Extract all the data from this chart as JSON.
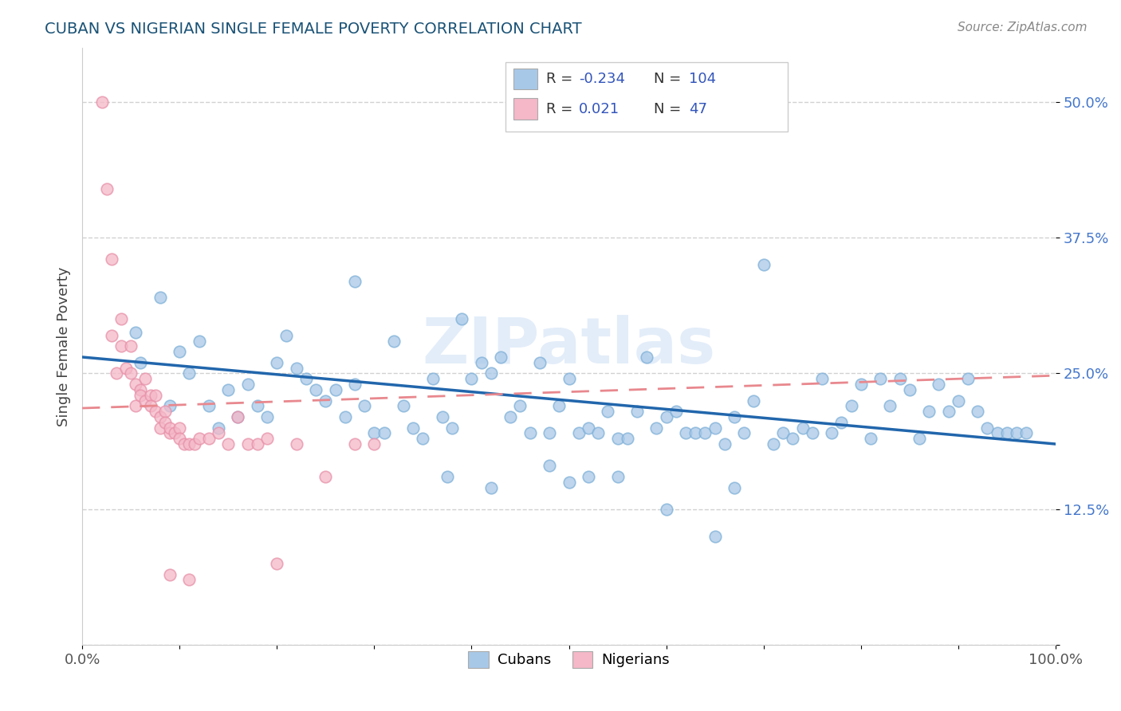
{
  "title": "CUBAN VS NIGERIAN SINGLE FEMALE POVERTY CORRELATION CHART",
  "source": "Source: ZipAtlas.com",
  "ylabel": "Single Female Poverty",
  "title_color": "#1a5276",
  "source_color": "#888888",
  "background_color": "#ffffff",
  "xlim": [
    0.0,
    1.0
  ],
  "ylim": [
    0.0,
    0.55
  ],
  "yticks": [
    0.0,
    0.125,
    0.25,
    0.375,
    0.5
  ],
  "ytick_labels": [
    "",
    "12.5%",
    "25.0%",
    "37.5%",
    "50.0%"
  ],
  "legend_labels": [
    "Cubans",
    "Nigerians"
  ],
  "cubans_color": "#a8c8e8",
  "nigerians_color": "#f4b8c8",
  "cubans_edge_color": "#7eb0d8",
  "nigerians_edge_color": "#e890a8",
  "cubans_line_color": "#2166ac",
  "nigerians_line_color": "#e8888e",
  "legend_text_color": "#3355bb",
  "cubans_scatter": [
    [
      0.055,
      0.288
    ],
    [
      0.06,
      0.26
    ],
    [
      0.08,
      0.32
    ],
    [
      0.09,
      0.22
    ],
    [
      0.1,
      0.27
    ],
    [
      0.11,
      0.25
    ],
    [
      0.12,
      0.28
    ],
    [
      0.13,
      0.22
    ],
    [
      0.14,
      0.2
    ],
    [
      0.15,
      0.235
    ],
    [
      0.16,
      0.21
    ],
    [
      0.17,
      0.24
    ],
    [
      0.18,
      0.22
    ],
    [
      0.19,
      0.21
    ],
    [
      0.2,
      0.26
    ],
    [
      0.21,
      0.285
    ],
    [
      0.22,
      0.255
    ],
    [
      0.23,
      0.245
    ],
    [
      0.24,
      0.235
    ],
    [
      0.25,
      0.225
    ],
    [
      0.26,
      0.235
    ],
    [
      0.27,
      0.21
    ],
    [
      0.28,
      0.24
    ],
    [
      0.29,
      0.22
    ],
    [
      0.3,
      0.195
    ],
    [
      0.31,
      0.195
    ],
    [
      0.32,
      0.28
    ],
    [
      0.33,
      0.22
    ],
    [
      0.34,
      0.2
    ],
    [
      0.35,
      0.19
    ],
    [
      0.36,
      0.245
    ],
    [
      0.37,
      0.21
    ],
    [
      0.38,
      0.2
    ],
    [
      0.39,
      0.3
    ],
    [
      0.4,
      0.245
    ],
    [
      0.41,
      0.26
    ],
    [
      0.42,
      0.25
    ],
    [
      0.43,
      0.265
    ],
    [
      0.44,
      0.21
    ],
    [
      0.45,
      0.22
    ],
    [
      0.46,
      0.195
    ],
    [
      0.47,
      0.26
    ],
    [
      0.48,
      0.195
    ],
    [
      0.49,
      0.22
    ],
    [
      0.5,
      0.245
    ],
    [
      0.51,
      0.195
    ],
    [
      0.52,
      0.2
    ],
    [
      0.53,
      0.195
    ],
    [
      0.54,
      0.215
    ],
    [
      0.55,
      0.19
    ],
    [
      0.56,
      0.19
    ],
    [
      0.57,
      0.215
    ],
    [
      0.58,
      0.265
    ],
    [
      0.59,
      0.2
    ],
    [
      0.6,
      0.21
    ],
    [
      0.61,
      0.215
    ],
    [
      0.62,
      0.195
    ],
    [
      0.63,
      0.195
    ],
    [
      0.64,
      0.195
    ],
    [
      0.65,
      0.2
    ],
    [
      0.66,
      0.185
    ],
    [
      0.67,
      0.21
    ],
    [
      0.68,
      0.195
    ],
    [
      0.69,
      0.225
    ],
    [
      0.7,
      0.35
    ],
    [
      0.71,
      0.185
    ],
    [
      0.72,
      0.195
    ],
    [
      0.73,
      0.19
    ],
    [
      0.74,
      0.2
    ],
    [
      0.75,
      0.195
    ],
    [
      0.76,
      0.245
    ],
    [
      0.77,
      0.195
    ],
    [
      0.78,
      0.205
    ],
    [
      0.79,
      0.22
    ],
    [
      0.8,
      0.24
    ],
    [
      0.81,
      0.19
    ],
    [
      0.82,
      0.245
    ],
    [
      0.83,
      0.22
    ],
    [
      0.84,
      0.245
    ],
    [
      0.85,
      0.235
    ],
    [
      0.86,
      0.19
    ],
    [
      0.87,
      0.215
    ],
    [
      0.88,
      0.24
    ],
    [
      0.89,
      0.215
    ],
    [
      0.9,
      0.225
    ],
    [
      0.91,
      0.245
    ],
    [
      0.92,
      0.215
    ],
    [
      0.93,
      0.2
    ],
    [
      0.94,
      0.195
    ],
    [
      0.95,
      0.195
    ],
    [
      0.96,
      0.195
    ],
    [
      0.97,
      0.195
    ],
    [
      0.375,
      0.155
    ],
    [
      0.42,
      0.145
    ],
    [
      0.48,
      0.165
    ],
    [
      0.5,
      0.15
    ],
    [
      0.52,
      0.155
    ],
    [
      0.55,
      0.155
    ],
    [
      0.6,
      0.125
    ],
    [
      0.65,
      0.1
    ],
    [
      0.67,
      0.145
    ],
    [
      0.28,
      0.335
    ]
  ],
  "nigerians_scatter": [
    [
      0.02,
      0.5
    ],
    [
      0.025,
      0.42
    ],
    [
      0.03,
      0.355
    ],
    [
      0.03,
      0.285
    ],
    [
      0.035,
      0.25
    ],
    [
      0.04,
      0.3
    ],
    [
      0.04,
      0.275
    ],
    [
      0.045,
      0.255
    ],
    [
      0.05,
      0.25
    ],
    [
      0.05,
      0.275
    ],
    [
      0.055,
      0.24
    ],
    [
      0.055,
      0.22
    ],
    [
      0.06,
      0.235
    ],
    [
      0.06,
      0.23
    ],
    [
      0.065,
      0.245
    ],
    [
      0.065,
      0.225
    ],
    [
      0.07,
      0.23
    ],
    [
      0.07,
      0.22
    ],
    [
      0.075,
      0.215
    ],
    [
      0.075,
      0.23
    ],
    [
      0.08,
      0.21
    ],
    [
      0.08,
      0.2
    ],
    [
      0.085,
      0.215
    ],
    [
      0.085,
      0.205
    ],
    [
      0.09,
      0.195
    ],
    [
      0.09,
      0.2
    ],
    [
      0.095,
      0.195
    ],
    [
      0.1,
      0.2
    ],
    [
      0.1,
      0.19
    ],
    [
      0.105,
      0.185
    ],
    [
      0.11,
      0.185
    ],
    [
      0.115,
      0.185
    ],
    [
      0.12,
      0.19
    ],
    [
      0.13,
      0.19
    ],
    [
      0.14,
      0.195
    ],
    [
      0.15,
      0.185
    ],
    [
      0.16,
      0.21
    ],
    [
      0.17,
      0.185
    ],
    [
      0.18,
      0.185
    ],
    [
      0.19,
      0.19
    ],
    [
      0.2,
      0.075
    ],
    [
      0.22,
      0.185
    ],
    [
      0.25,
      0.155
    ],
    [
      0.28,
      0.185
    ],
    [
      0.3,
      0.185
    ],
    [
      0.09,
      0.065
    ],
    [
      0.11,
      0.06
    ]
  ]
}
